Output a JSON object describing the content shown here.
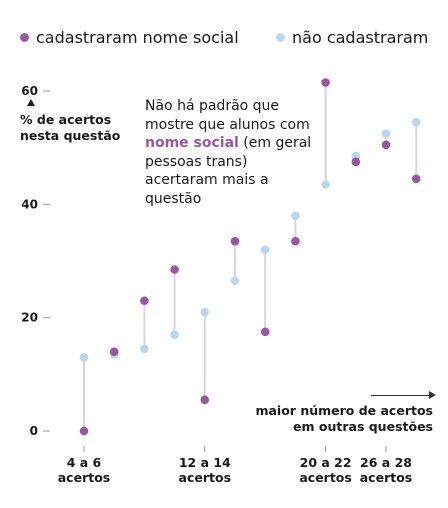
{
  "colors": {
    "social": "#9b56a3",
    "no_social": "#b9d7ee",
    "connector": "#dcd3dd",
    "axis": "#999999"
  },
  "legend": {
    "social_label": "cadastraram nome social",
    "no_social_label": "não cadastraram"
  },
  "annotation": {
    "prefix": "Não há padrão que mostre que alunos com ",
    "highlight": "nome social",
    "suffix": " (em geral pessoas trans) acertaram mais a questão"
  },
  "x_note": {
    "line1": "maior número de acertos",
    "line2": "em outras questões"
  },
  "chart_data": {
    "type": "scatter",
    "ylabel": "% de acertos nesta questão",
    "ylim": [
      0,
      60
    ],
    "y_ticks": [
      0,
      20,
      40,
      60
    ],
    "x_groups": 12,
    "x_tick_labels": [
      {
        "group": 1,
        "lines": [
          "4 a 6",
          "acertos"
        ]
      },
      {
        "group": 5,
        "lines": [
          "12 a 14",
          "acertos"
        ]
      },
      {
        "group": 9,
        "lines": [
          "20 a 22",
          "acertos"
        ]
      },
      {
        "group": 11,
        "lines": [
          "26 a 28",
          "acertos"
        ]
      }
    ],
    "series": [
      {
        "name": "cadastraram nome social",
        "values": [
          0,
          14,
          23,
          28.5,
          5.5,
          33.5,
          17.5,
          33.5,
          61.5,
          47.5,
          50.5,
          44.5
        ]
      },
      {
        "name": "não cadastraram",
        "values": [
          13,
          13.5,
          14.5,
          17,
          21,
          26.5,
          32,
          38,
          43.5,
          48.5,
          52.5,
          54.5
        ]
      }
    ]
  }
}
